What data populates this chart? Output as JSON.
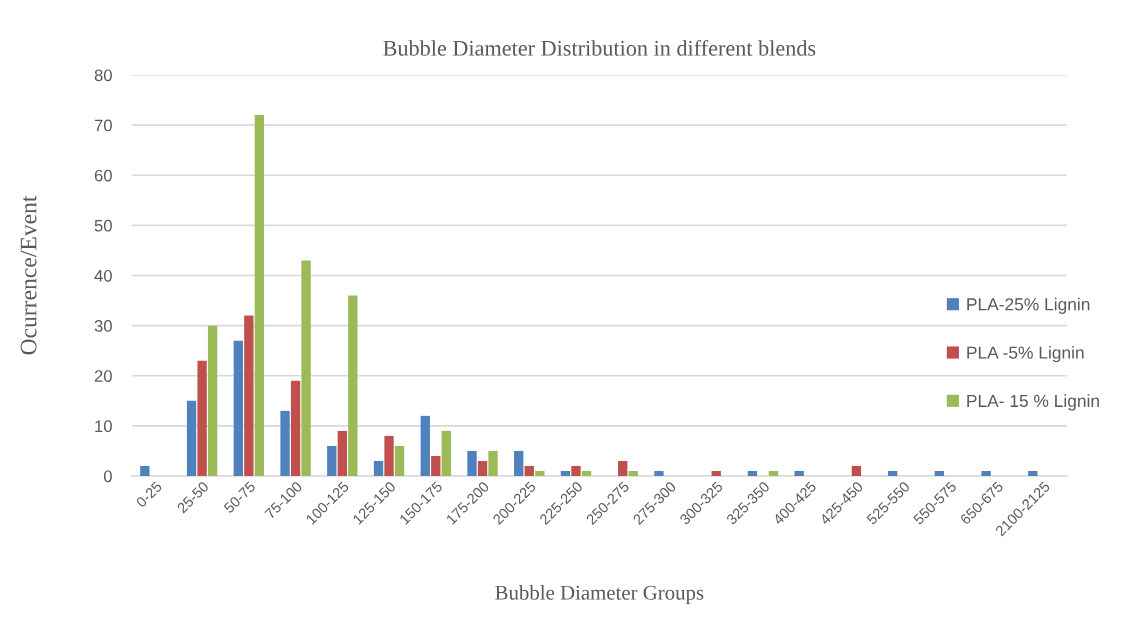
{
  "chart_data": {
    "type": "bar",
    "title": "Bubble Diameter Distribution in different blends",
    "xlabel": "Bubble Diameter Groups",
    "ylabel": "Ocurrence/Event",
    "categories": [
      "0-25",
      "25-50",
      "50-75",
      "75-100",
      "100-125",
      "125-150",
      "150-175",
      "175-200",
      "200-225",
      "225-250",
      "250-275",
      "275-300",
      "300-325",
      "325-350",
      "400-425",
      "425-450",
      "525-550",
      "550-575",
      "650-675",
      "2100-2125"
    ],
    "series": [
      {
        "name": "PLA-25% Lignin",
        "color": "#4f81bd",
        "values": [
          2,
          15,
          27,
          13,
          6,
          3,
          12,
          5,
          5,
          1,
          null,
          1,
          null,
          1,
          1,
          null,
          1,
          1,
          1,
          1
        ]
      },
      {
        "name": "PLA -5% Lignin",
        "color": "#c0504d",
        "values": [
          null,
          23,
          32,
          19,
          9,
          8,
          4,
          3,
          2,
          2,
          3,
          null,
          1,
          null,
          null,
          2,
          null,
          null,
          null,
          null
        ]
      },
      {
        "name": "PLA- 15 % Lignin",
        "color": "#9bbb59",
        "values": [
          null,
          30,
          72,
          43,
          36,
          6,
          9,
          5,
          1,
          1,
          1,
          null,
          null,
          1,
          null,
          null,
          null,
          null,
          null,
          null
        ]
      }
    ],
    "ylim": [
      0,
      80
    ],
    "yticks": [
      0,
      10,
      20,
      30,
      40,
      50,
      60,
      70,
      80
    ],
    "grid": "y",
    "legend": "right"
  }
}
